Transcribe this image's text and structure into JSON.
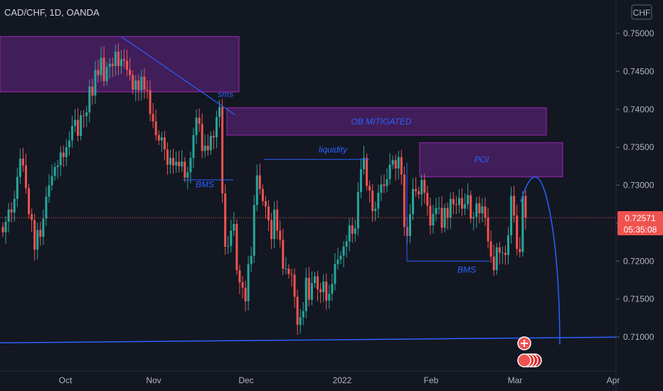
{
  "header": {
    "symbol": "CAD/CHF, 1D, OANDA"
  },
  "currency_button": "CHF",
  "colors": {
    "background": "#131722",
    "up": "#26a69a",
    "down": "#ef5350",
    "annotation": "#2962ff",
    "zone_fill": "#4a1f63",
    "zone_border": "#9c27b0",
    "price_line": "#ef5350"
  },
  "price_badge": {
    "price": "0.72571",
    "countdown": "05:35:08"
  },
  "chart_data": {
    "type": "candlestick",
    "title": "CAD/CHF, 1D, OANDA",
    "ylim": [
      0.7058,
      0.7524
    ],
    "y_ticks": [
      "0.75000",
      "0.74500",
      "0.74000",
      "0.73500",
      "0.73000",
      "0.72500",
      "0.72000",
      "0.71500",
      "0.71000"
    ],
    "x_ticks": [
      "Oct",
      "Nov",
      "Dec",
      "2022",
      "Feb",
      "Mar",
      "Apr"
    ],
    "last_price": 0.72571,
    "closes": [
      0.7238,
      0.7252,
      0.7268,
      0.7264,
      0.7282,
      0.7311,
      0.7335,
      0.7326,
      0.7296,
      0.7262,
      0.7254,
      0.7215,
      0.7241,
      0.7232,
      0.7256,
      0.7285,
      0.73,
      0.7312,
      0.7324,
      0.7326,
      0.7343,
      0.7337,
      0.735,
      0.7359,
      0.7378,
      0.7386,
      0.7365,
      0.7392,
      0.7391,
      0.7396,
      0.743,
      0.7418,
      0.7452,
      0.7445,
      0.7468,
      0.7437,
      0.7456,
      0.746,
      0.7457,
      0.7476,
      0.7457,
      0.7466,
      0.7464,
      0.7452,
      0.7445,
      0.7426,
      0.7438,
      0.7425,
      0.7443,
      0.7426,
      0.7425,
      0.7394,
      0.7384,
      0.7366,
      0.7359,
      0.7363,
      0.7347,
      0.7327,
      0.7336,
      0.7326,
      0.7331,
      0.7325,
      0.7331,
      0.731,
      0.7317,
      0.7336,
      0.7366,
      0.7389,
      0.7381,
      0.7345,
      0.7352,
      0.7346,
      0.7365,
      0.7363,
      0.739,
      0.7403,
      0.7289,
      0.7219,
      0.722,
      0.724,
      0.7249,
      0.7188,
      0.7172,
      0.7165,
      0.7147,
      0.7196,
      0.7207,
      0.7274,
      0.7313,
      0.7295,
      0.7279,
      0.7272,
      0.7254,
      0.7229,
      0.7268,
      0.724,
      0.7228,
      0.719,
      0.719,
      0.7183,
      0.7182,
      0.7153,
      0.7116,
      0.7126,
      0.7134,
      0.7178,
      0.7149,
      0.7171,
      0.718,
      0.7163,
      0.7159,
      0.7173,
      0.7148,
      0.7157,
      0.717,
      0.7196,
      0.7202,
      0.7207,
      0.7219,
      0.7226,
      0.7247,
      0.7236,
      0.7243,
      0.7291,
      0.7321,
      0.7336,
      0.7299,
      0.7293,
      0.7266,
      0.7269,
      0.729,
      0.7301,
      0.7299,
      0.7308,
      0.7327,
      0.7333,
      0.7322,
      0.7337,
      0.7314,
      0.7245,
      0.7233,
      0.7262,
      0.7295,
      0.7292,
      0.7288,
      0.7307,
      0.729,
      0.7273,
      0.7247,
      0.7262,
      0.727,
      0.727,
      0.7244,
      0.727,
      0.7257,
      0.7282,
      0.7275,
      0.7274,
      0.7283,
      0.7269,
      0.7275,
      0.7287,
      0.7256,
      0.7258,
      0.7276,
      0.7263,
      0.7272,
      0.7257,
      0.7226,
      0.7206,
      0.7188,
      0.7218,
      0.7211,
      0.7211,
      0.7208,
      0.7234,
      0.7286,
      0.726,
      0.7216,
      0.7212,
      0.7286,
      0.7257
    ],
    "annotations": {
      "zones": [
        {
          "label": "",
          "y_top": 0.7496,
          "y_bottom": 0.7423
        },
        {
          "label": "OB MITIGATED",
          "y_top": 0.7402,
          "y_bottom": 0.7366
        },
        {
          "label": "POI",
          "y_top": 0.7356,
          "y_bottom": 0.7311
        }
      ],
      "texts": [
        "sms",
        "BMS",
        "liquidity",
        "BMS"
      ],
      "levels": [
        0.7096
      ]
    }
  }
}
